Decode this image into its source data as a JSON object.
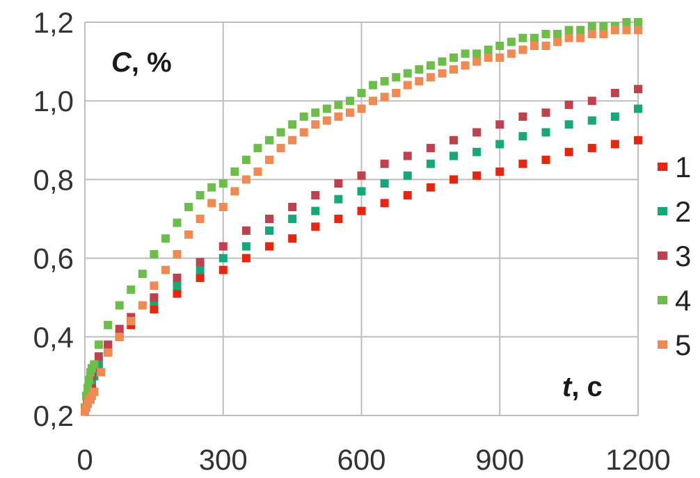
{
  "chart_data": {
    "type": "scatter",
    "ylabel_parts": [
      "C",
      ", %"
    ],
    "xlabel_parts": [
      "t",
      ", c"
    ],
    "xlim": [
      0,
      1200
    ],
    "ylim": [
      0.2,
      1.2
    ],
    "xticks": [
      "0",
      "300",
      "600",
      "900",
      "1200"
    ],
    "yticks": [
      "0,2",
      "0,4",
      "0,6",
      "0,8",
      "1,0",
      "1,2"
    ],
    "grid": true,
    "legend_position": "right",
    "series": [
      {
        "name": "1",
        "color": "#e8250e",
        "x": [
          0,
          5,
          10,
          15,
          20,
          30,
          50,
          75,
          100,
          150,
          200,
          250,
          300,
          350,
          400,
          450,
          500,
          550,
          600,
          650,
          700,
          750,
          800,
          850,
          900,
          950,
          1000,
          1050,
          1100,
          1150,
          1200
        ],
        "y": [
          0.21,
          0.24,
          0.26,
          0.28,
          0.3,
          0.32,
          0.36,
          0.4,
          0.43,
          0.47,
          0.51,
          0.55,
          0.57,
          0.6,
          0.63,
          0.65,
          0.68,
          0.7,
          0.72,
          0.74,
          0.76,
          0.78,
          0.8,
          0.81,
          0.82,
          0.84,
          0.85,
          0.87,
          0.88,
          0.89,
          0.9
        ]
      },
      {
        "name": "2",
        "color": "#17a87a",
        "x": [
          0,
          5,
          10,
          15,
          20,
          30,
          50,
          75,
          100,
          150,
          200,
          250,
          300,
          350,
          400,
          450,
          500,
          550,
          600,
          650,
          700,
          750,
          800,
          850,
          900,
          950,
          1000,
          1050,
          1100,
          1150,
          1200
        ],
        "y": [
          0.21,
          0.24,
          0.27,
          0.29,
          0.3,
          0.33,
          0.37,
          0.41,
          0.44,
          0.49,
          0.53,
          0.57,
          0.6,
          0.63,
          0.67,
          0.7,
          0.72,
          0.75,
          0.77,
          0.79,
          0.81,
          0.84,
          0.86,
          0.87,
          0.89,
          0.91,
          0.92,
          0.94,
          0.95,
          0.96,
          0.98
        ]
      },
      {
        "name": "3",
        "color": "#c0404e",
        "x": [
          0,
          5,
          10,
          15,
          20,
          30,
          50,
          75,
          100,
          150,
          200,
          250,
          300,
          350,
          400,
          450,
          500,
          550,
          600,
          650,
          700,
          750,
          800,
          850,
          900,
          950,
          1000,
          1050,
          1100,
          1150,
          1200
        ],
        "y": [
          0.21,
          0.24,
          0.27,
          0.3,
          0.32,
          0.35,
          0.38,
          0.42,
          0.45,
          0.5,
          0.55,
          0.59,
          0.63,
          0.67,
          0.7,
          0.73,
          0.76,
          0.79,
          0.81,
          0.84,
          0.86,
          0.88,
          0.9,
          0.92,
          0.94,
          0.96,
          0.97,
          0.99,
          1.0,
          1.02,
          1.03
        ]
      },
      {
        "name": "4",
        "color": "#6cbd4a",
        "x": [
          0,
          3,
          6,
          9,
          12,
          15,
          20,
          30,
          50,
          75,
          100,
          125,
          150,
          175,
          200,
          225,
          250,
          275,
          300,
          325,
          350,
          375,
          400,
          425,
          450,
          475,
          500,
          525,
          550,
          575,
          600,
          625,
          650,
          675,
          700,
          725,
          750,
          775,
          800,
          825,
          850,
          875,
          900,
          925,
          950,
          975,
          1000,
          1025,
          1050,
          1075,
          1100,
          1125,
          1150,
          1175,
          1200
        ],
        "y": [
          0.22,
          0.25,
          0.27,
          0.29,
          0.31,
          0.32,
          0.33,
          0.38,
          0.43,
          0.48,
          0.52,
          0.56,
          0.61,
          0.65,
          0.69,
          0.73,
          0.76,
          0.78,
          0.79,
          0.82,
          0.85,
          0.88,
          0.9,
          0.92,
          0.94,
          0.96,
          0.97,
          0.98,
          0.99,
          1.0,
          1.02,
          1.04,
          1.05,
          1.06,
          1.07,
          1.08,
          1.09,
          1.1,
          1.11,
          1.12,
          1.12,
          1.13,
          1.14,
          1.15,
          1.16,
          1.16,
          1.17,
          1.17,
          1.18,
          1.18,
          1.19,
          1.19,
          1.19,
          1.2,
          1.2
        ]
      },
      {
        "name": "5",
        "color": "#f08a52",
        "x": [
          0,
          3,
          6,
          9,
          12,
          15,
          20,
          35,
          50,
          75,
          100,
          125,
          150,
          175,
          200,
          225,
          250,
          275,
          300,
          325,
          350,
          375,
          400,
          425,
          450,
          475,
          500,
          525,
          550,
          575,
          600,
          625,
          650,
          675,
          700,
          725,
          750,
          775,
          800,
          825,
          850,
          875,
          900,
          925,
          950,
          975,
          1000,
          1025,
          1050,
          1075,
          1100,
          1125,
          1150,
          1175,
          1200
        ],
        "y": [
          0.21,
          0.22,
          0.23,
          0.24,
          0.24,
          0.25,
          0.26,
          0.31,
          0.36,
          0.4,
          0.44,
          0.48,
          0.53,
          0.57,
          0.61,
          0.66,
          0.7,
          0.74,
          0.73,
          0.77,
          0.8,
          0.82,
          0.85,
          0.88,
          0.9,
          0.92,
          0.94,
          0.95,
          0.96,
          0.97,
          0.98,
          1.0,
          1.01,
          1.02,
          1.04,
          1.05,
          1.06,
          1.07,
          1.08,
          1.09,
          1.1,
          1.11,
          1.11,
          1.12,
          1.13,
          1.14,
          1.14,
          1.15,
          1.16,
          1.16,
          1.17,
          1.17,
          1.18,
          1.18,
          1.18
        ]
      }
    ]
  }
}
